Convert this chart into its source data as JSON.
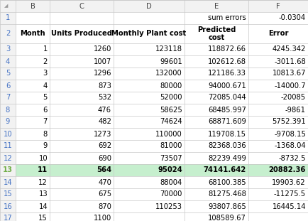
{
  "col_letters": [
    "B",
    "C",
    "D",
    "E",
    "F"
  ],
  "row1_data": [
    "",
    "",
    "",
    "sum errors",
    "-0.0304"
  ],
  "col_headers": [
    "Month",
    "Units Produced",
    "Monthly Plant cost",
    "Predicted\ncost",
    "Error"
  ],
  "rows": [
    [
      "1",
      "1260",
      "123118",
      "118872.66",
      "4245.342"
    ],
    [
      "2",
      "1007",
      "99601",
      "102612.68",
      "-3011.68"
    ],
    [
      "3",
      "1296",
      "132000",
      "121186.33",
      "10813.67"
    ],
    [
      "4",
      "873",
      "80000",
      "94000.671",
      "-14000.7"
    ],
    [
      "5",
      "532",
      "52000",
      "72085.044",
      "-20085"
    ],
    [
      "6",
      "476",
      "58625",
      "68485.997",
      "-9861"
    ],
    [
      "7",
      "482",
      "74624",
      "68871.609",
      "5752.391"
    ],
    [
      "8",
      "1273",
      "110000",
      "119708.15",
      "-9708.15"
    ],
    [
      "9",
      "692",
      "81000",
      "82368.036",
      "-1368.04"
    ],
    [
      "10",
      "690",
      "73507",
      "82239.499",
      "-8732.5"
    ],
    [
      "11",
      "564",
      "95024",
      "74141.642",
      "20882.36"
    ],
    [
      "12",
      "470",
      "88004",
      "68100.385",
      "19903.62"
    ],
    [
      "13",
      "675",
      "70000",
      "81275.468",
      "-11275.5"
    ],
    [
      "14",
      "870",
      "110253",
      "93807.865",
      "16445.14"
    ],
    [
      "15",
      "1100",
      "",
      "108589.67",
      ""
    ]
  ],
  "highlight_row_num": 13,
  "header_bg": "#f2f2f2",
  "highlight_color": "#c6efce",
  "grid_color": "#c8c8c8",
  "font_size": 7.2,
  "row_num_color": "#4472c4",
  "row_num_color_highlight": "#70ad47"
}
